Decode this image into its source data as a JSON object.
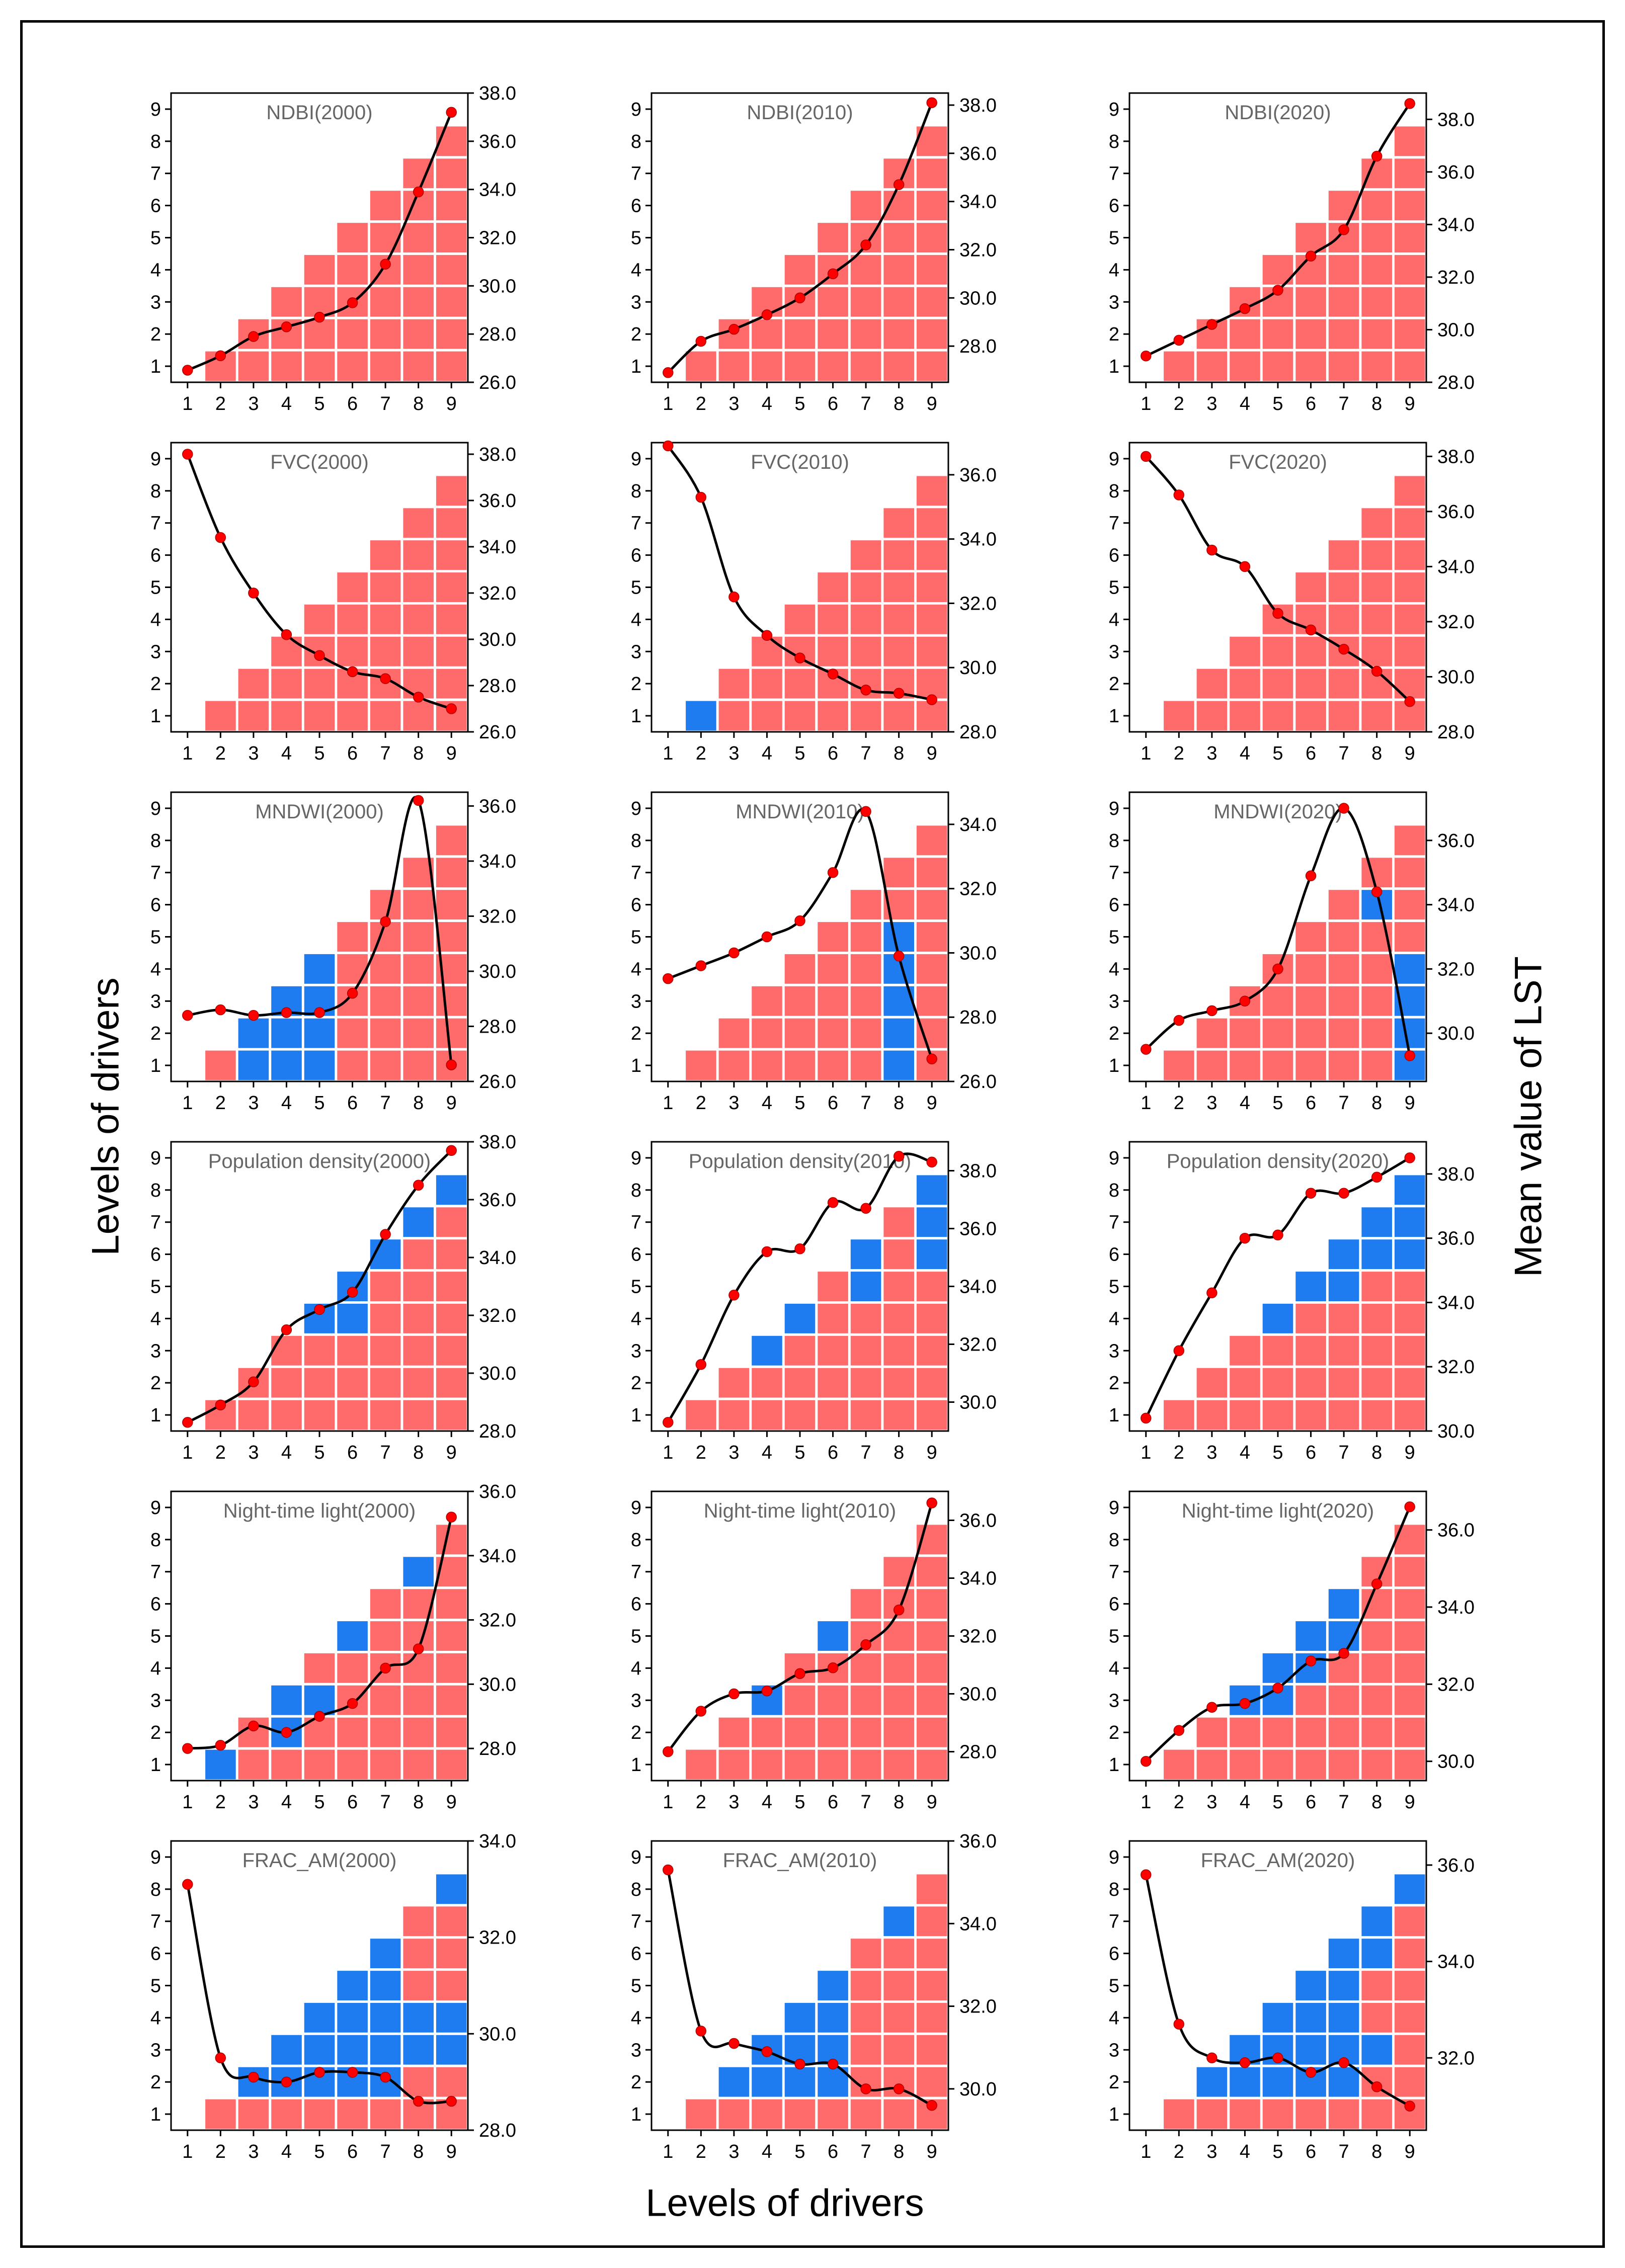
{
  "figure": {
    "y_left_title": "Levels of drivers",
    "y_right_title": "Mean value of LST",
    "x_bottom_title": "Levels of drivers"
  },
  "colors": {
    "enhance": "#ff6b6b",
    "weaken": "#1e7cf0",
    "curve": "#000000",
    "point": "#ff0000",
    "panel_title": "#666666"
  },
  "chart_data": [
    {
      "type": "heatmap-line",
      "title": "NDBI(2000)",
      "x": [
        1,
        2,
        3,
        4,
        5,
        6,
        7,
        8,
        9
      ],
      "ylim": [
        0.5,
        9.5
      ],
      "ylim_right": [
        26.0,
        38.0
      ],
      "yticks_right": [
        26.0,
        28.0,
        30.0,
        32.0,
        34.0,
        36.0,
        38.0
      ],
      "lst": [
        26.5,
        27.1,
        27.9,
        28.3,
        28.7,
        29.3,
        30.9,
        33.9,
        37.2
      ],
      "blue_cells": []
    },
    {
      "type": "heatmap-line",
      "title": "NDBI(2010)",
      "x": [
        1,
        2,
        3,
        4,
        5,
        6,
        7,
        8,
        9
      ],
      "ylim": [
        0.5,
        9.5
      ],
      "ylim_right": [
        26.5,
        38.5
      ],
      "yticks_right": [
        28.0,
        30.0,
        32.0,
        34.0,
        36.0,
        38.0
      ],
      "lst": [
        26.9,
        28.2,
        28.7,
        29.3,
        30.0,
        31.0,
        32.2,
        34.7,
        38.1
      ],
      "blue_cells": []
    },
    {
      "type": "heatmap-line",
      "title": "NDBI(2020)",
      "x": [
        1,
        2,
        3,
        4,
        5,
        6,
        7,
        8,
        9
      ],
      "ylim": [
        0.5,
        9.5
      ],
      "ylim_right": [
        28.0,
        39.0
      ],
      "yticks_right": [
        28.0,
        30.0,
        32.0,
        34.0,
        36.0,
        38.0
      ],
      "lst": [
        29.0,
        29.6,
        30.2,
        30.8,
        31.5,
        32.8,
        33.8,
        36.6,
        38.6
      ],
      "blue_cells": []
    },
    {
      "type": "heatmap-line",
      "title": "FVC(2000)",
      "x": [
        1,
        2,
        3,
        4,
        5,
        6,
        7,
        8,
        9
      ],
      "ylim": [
        0.5,
        9.5
      ],
      "ylim_right": [
        26.0,
        38.5
      ],
      "yticks_right": [
        26.0,
        28.0,
        30.0,
        32.0,
        34.0,
        36.0,
        38.0
      ],
      "lst": [
        38.0,
        34.4,
        32.0,
        30.2,
        29.3,
        28.6,
        28.3,
        27.5,
        27.0
      ],
      "blue_cells": []
    },
    {
      "type": "heatmap-line",
      "title": "FVC(2010)",
      "x": [
        1,
        2,
        3,
        4,
        5,
        6,
        7,
        8,
        9
      ],
      "ylim": [
        0.5,
        9.5
      ],
      "ylim_right": [
        28.0,
        37.0
      ],
      "yticks_right": [
        28.0,
        30.0,
        32.0,
        34.0,
        36.0
      ],
      "lst": [
        36.9,
        35.3,
        32.2,
        31.0,
        30.3,
        29.8,
        29.3,
        29.2,
        29.0
      ],
      "blue_cells": [
        [
          2,
          1
        ]
      ]
    },
    {
      "type": "heatmap-line",
      "title": "FVC(2020)",
      "x": [
        1,
        2,
        3,
        4,
        5,
        6,
        7,
        8,
        9
      ],
      "ylim": [
        0.5,
        9.5
      ],
      "ylim_right": [
        28.0,
        38.5
      ],
      "yticks_right": [
        28.0,
        30.0,
        32.0,
        34.0,
        36.0,
        38.0
      ],
      "lst": [
        38.0,
        36.6,
        34.6,
        34.0,
        32.3,
        31.7,
        31.0,
        30.2,
        29.1
      ],
      "blue_cells": []
    },
    {
      "type": "heatmap-line",
      "title": "MNDWI(2000)",
      "x": [
        1,
        2,
        3,
        4,
        5,
        6,
        7,
        8,
        9
      ],
      "ylim": [
        0.5,
        9.5
      ],
      "ylim_right": [
        26.0,
        36.5
      ],
      "yticks_right": [
        26.0,
        28.0,
        30.0,
        32.0,
        34.0,
        36.0
      ],
      "lst": [
        28.4,
        28.6,
        28.4,
        28.5,
        28.5,
        29.2,
        31.8,
        36.2,
        26.6
      ],
      "blue_cells": [
        [
          3,
          1
        ],
        [
          3,
          2
        ],
        [
          4,
          1
        ],
        [
          4,
          2
        ],
        [
          4,
          3
        ],
        [
          5,
          1
        ],
        [
          5,
          2
        ],
        [
          5,
          3
        ],
        [
          5,
          4
        ]
      ]
    },
    {
      "type": "heatmap-line",
      "title": "MNDWI(2010)",
      "x": [
        1,
        2,
        3,
        4,
        5,
        6,
        7,
        8,
        9
      ],
      "ylim": [
        0.5,
        9.5
      ],
      "ylim_right": [
        26.0,
        35.0
      ],
      "yticks_right": [
        26.0,
        28.0,
        30.0,
        32.0,
        34.0
      ],
      "lst": [
        29.2,
        29.6,
        30.0,
        30.5,
        31.0,
        32.5,
        34.4,
        29.9,
        26.7
      ],
      "blue_cells": [
        [
          8,
          1
        ],
        [
          8,
          2
        ],
        [
          8,
          3
        ],
        [
          8,
          4
        ],
        [
          8,
          5
        ]
      ]
    },
    {
      "type": "heatmap-line",
      "title": "MNDWI(2020)",
      "x": [
        1,
        2,
        3,
        4,
        5,
        6,
        7,
        8,
        9
      ],
      "ylim": [
        0.5,
        9.5
      ],
      "ylim_right": [
        28.5,
        37.5
      ],
      "yticks_right": [
        30.0,
        32.0,
        34.0,
        36.0
      ],
      "lst": [
        29.5,
        30.4,
        30.7,
        31.0,
        32.0,
        34.9,
        37.0,
        34.4,
        29.3
      ],
      "blue_cells": [
        [
          8,
          6
        ],
        [
          9,
          1
        ],
        [
          9,
          2
        ],
        [
          9,
          3
        ],
        [
          9,
          4
        ]
      ]
    },
    {
      "type": "heatmap-line",
      "title": "Population density(2000)",
      "x": [
        1,
        2,
        3,
        4,
        5,
        6,
        7,
        8,
        9
      ],
      "ylim": [
        0.5,
        9.5
      ],
      "ylim_right": [
        28.0,
        38.0
      ],
      "yticks_right": [
        28.0,
        30.0,
        32.0,
        34.0,
        36.0,
        38.0
      ],
      "lst": [
        28.3,
        28.9,
        29.7,
        31.5,
        32.2,
        32.8,
        34.8,
        36.5,
        37.7
      ],
      "blue_cells": [
        [
          5,
          4
        ],
        [
          6,
          4
        ],
        [
          6,
          5
        ],
        [
          7,
          6
        ],
        [
          8,
          7
        ],
        [
          9,
          8
        ]
      ]
    },
    {
      "type": "heatmap-line",
      "title": "Population density(2010)",
      "x": [
        1,
        2,
        3,
        4,
        5,
        6,
        7,
        8,
        9
      ],
      "ylim": [
        0.5,
        9.5
      ],
      "ylim_right": [
        29.0,
        39.0
      ],
      "yticks_right": [
        30.0,
        32.0,
        34.0,
        36.0,
        38.0
      ],
      "lst": [
        29.3,
        31.3,
        33.7,
        35.2,
        35.3,
        36.9,
        36.7,
        38.5,
        38.3
      ],
      "blue_cells": [
        [
          4,
          3
        ],
        [
          5,
          4
        ],
        [
          7,
          5
        ],
        [
          7,
          6
        ],
        [
          9,
          6
        ],
        [
          9,
          7
        ],
        [
          9,
          8
        ]
      ]
    },
    {
      "type": "heatmap-line",
      "title": "Population density(2020)",
      "x": [
        1,
        2,
        3,
        4,
        5,
        6,
        7,
        8,
        9
      ],
      "ylim": [
        0.5,
        9.5
      ],
      "ylim_right": [
        30.0,
        39.0
      ],
      "yticks_right": [
        30.0,
        32.0,
        34.0,
        36.0,
        38.0
      ],
      "lst": [
        30.4,
        32.5,
        34.3,
        36.0,
        36.1,
        37.4,
        37.4,
        37.9,
        38.5
      ],
      "blue_cells": [
        [
          5,
          4
        ],
        [
          6,
          5
        ],
        [
          7,
          5
        ],
        [
          7,
          6
        ],
        [
          8,
          6
        ],
        [
          8,
          7
        ],
        [
          9,
          6
        ],
        [
          9,
          7
        ],
        [
          9,
          8
        ]
      ]
    },
    {
      "type": "heatmap-line",
      "title": "Night-time light(2000)",
      "x": [
        1,
        2,
        3,
        4,
        5,
        6,
        7,
        8,
        9
      ],
      "ylim": [
        0.5,
        9.5
      ],
      "ylim_right": [
        27.0,
        36.0
      ],
      "yticks_right": [
        28.0,
        30.0,
        32.0,
        34.0,
        36.0
      ],
      "lst": [
        28.0,
        28.1,
        28.7,
        28.5,
        29.0,
        29.4,
        30.5,
        31.1,
        35.2
      ],
      "blue_cells": [
        [
          2,
          1
        ],
        [
          4,
          2
        ],
        [
          4,
          3
        ],
        [
          5,
          3
        ],
        [
          6,
          5
        ],
        [
          8,
          7
        ]
      ]
    },
    {
      "type": "heatmap-line",
      "title": "Night-time light(2010)",
      "x": [
        1,
        2,
        3,
        4,
        5,
        6,
        7,
        8,
        9
      ],
      "ylim": [
        0.5,
        9.5
      ],
      "ylim_right": [
        27.0,
        37.0
      ],
      "yticks_right": [
        28.0,
        30.0,
        32.0,
        34.0,
        36.0
      ],
      "lst": [
        28.0,
        29.4,
        30.0,
        30.1,
        30.7,
        30.9,
        31.7,
        32.9,
        36.6
      ],
      "blue_cells": [
        [
          4,
          3
        ],
        [
          6,
          5
        ]
      ]
    },
    {
      "type": "heatmap-line",
      "title": "Night-time light(2020)",
      "x": [
        1,
        2,
        3,
        4,
        5,
        6,
        7,
        8,
        9
      ],
      "ylim": [
        0.5,
        9.5
      ],
      "ylim_right": [
        29.5,
        37.0
      ],
      "yticks_right": [
        30.0,
        32.0,
        34.0,
        36.0
      ],
      "lst": [
        30.0,
        30.8,
        31.4,
        31.5,
        31.9,
        32.6,
        32.8,
        34.6,
        36.6
      ],
      "blue_cells": [
        [
          4,
          3
        ],
        [
          5,
          3
        ],
        [
          5,
          4
        ],
        [
          6,
          4
        ],
        [
          6,
          5
        ],
        [
          7,
          5
        ],
        [
          7,
          6
        ]
      ]
    },
    {
      "type": "heatmap-line",
      "title": "FRAC_AM(2000)",
      "x": [
        1,
        2,
        3,
        4,
        5,
        6,
        7,
        8,
        9
      ],
      "ylim": [
        0.5,
        9.5
      ],
      "ylim_right": [
        28.0,
        34.0
      ],
      "yticks_right": [
        28.0,
        30.0,
        32.0,
        34.0
      ],
      "lst": [
        33.1,
        29.5,
        29.1,
        29.0,
        29.2,
        29.2,
        29.1,
        28.6,
        28.6
      ],
      "blue_cells": [
        [
          3,
          2
        ],
        [
          4,
          2
        ],
        [
          4,
          3
        ],
        [
          5,
          2
        ],
        [
          5,
          3
        ],
        [
          5,
          4
        ],
        [
          6,
          2
        ],
        [
          6,
          3
        ],
        [
          6,
          4
        ],
        [
          6,
          5
        ],
        [
          7,
          2
        ],
        [
          7,
          3
        ],
        [
          7,
          4
        ],
        [
          7,
          5
        ],
        [
          7,
          6
        ],
        [
          8,
          3
        ],
        [
          8,
          4
        ],
        [
          9,
          3
        ],
        [
          9,
          4
        ],
        [
          9,
          8
        ]
      ]
    },
    {
      "type": "heatmap-line",
      "title": "FRAC_AM(2010)",
      "x": [
        1,
        2,
        3,
        4,
        5,
        6,
        7,
        8,
        9
      ],
      "ylim": [
        0.5,
        9.5
      ],
      "ylim_right": [
        29.0,
        36.0
      ],
      "yticks_right": [
        30.0,
        32.0,
        34.0,
        36.0
      ],
      "lst": [
        35.3,
        31.4,
        31.1,
        30.9,
        30.6,
        30.6,
        30.0,
        30.0,
        29.6
      ],
      "blue_cells": [
        [
          3,
          2
        ],
        [
          4,
          2
        ],
        [
          4,
          3
        ],
        [
          5,
          2
        ],
        [
          5,
          3
        ],
        [
          5,
          4
        ],
        [
          6,
          2
        ],
        [
          6,
          3
        ],
        [
          6,
          4
        ],
        [
          6,
          5
        ],
        [
          8,
          7
        ]
      ]
    },
    {
      "type": "heatmap-line",
      "title": "FRAC_AM(2020)",
      "x": [
        1,
        2,
        3,
        4,
        5,
        6,
        7,
        8,
        9
      ],
      "ylim": [
        0.5,
        9.5
      ],
      "ylim_right": [
        30.5,
        36.5
      ],
      "yticks_right": [
        32.0,
        34.0,
        36.0
      ],
      "lst": [
        35.8,
        32.7,
        32.0,
        31.9,
        32.0,
        31.7,
        31.9,
        31.4,
        31.0
      ],
      "blue_cells": [
        [
          3,
          2
        ],
        [
          4,
          2
        ],
        [
          4,
          3
        ],
        [
          5,
          2
        ],
        [
          5,
          3
        ],
        [
          5,
          4
        ],
        [
          6,
          2
        ],
        [
          6,
          3
        ],
        [
          6,
          4
        ],
        [
          6,
          5
        ],
        [
          7,
          2
        ],
        [
          7,
          3
        ],
        [
          7,
          4
        ],
        [
          7,
          5
        ],
        [
          7,
          6
        ],
        [
          8,
          3
        ],
        [
          8,
          6
        ],
        [
          8,
          7
        ],
        [
          9,
          8
        ]
      ]
    }
  ]
}
